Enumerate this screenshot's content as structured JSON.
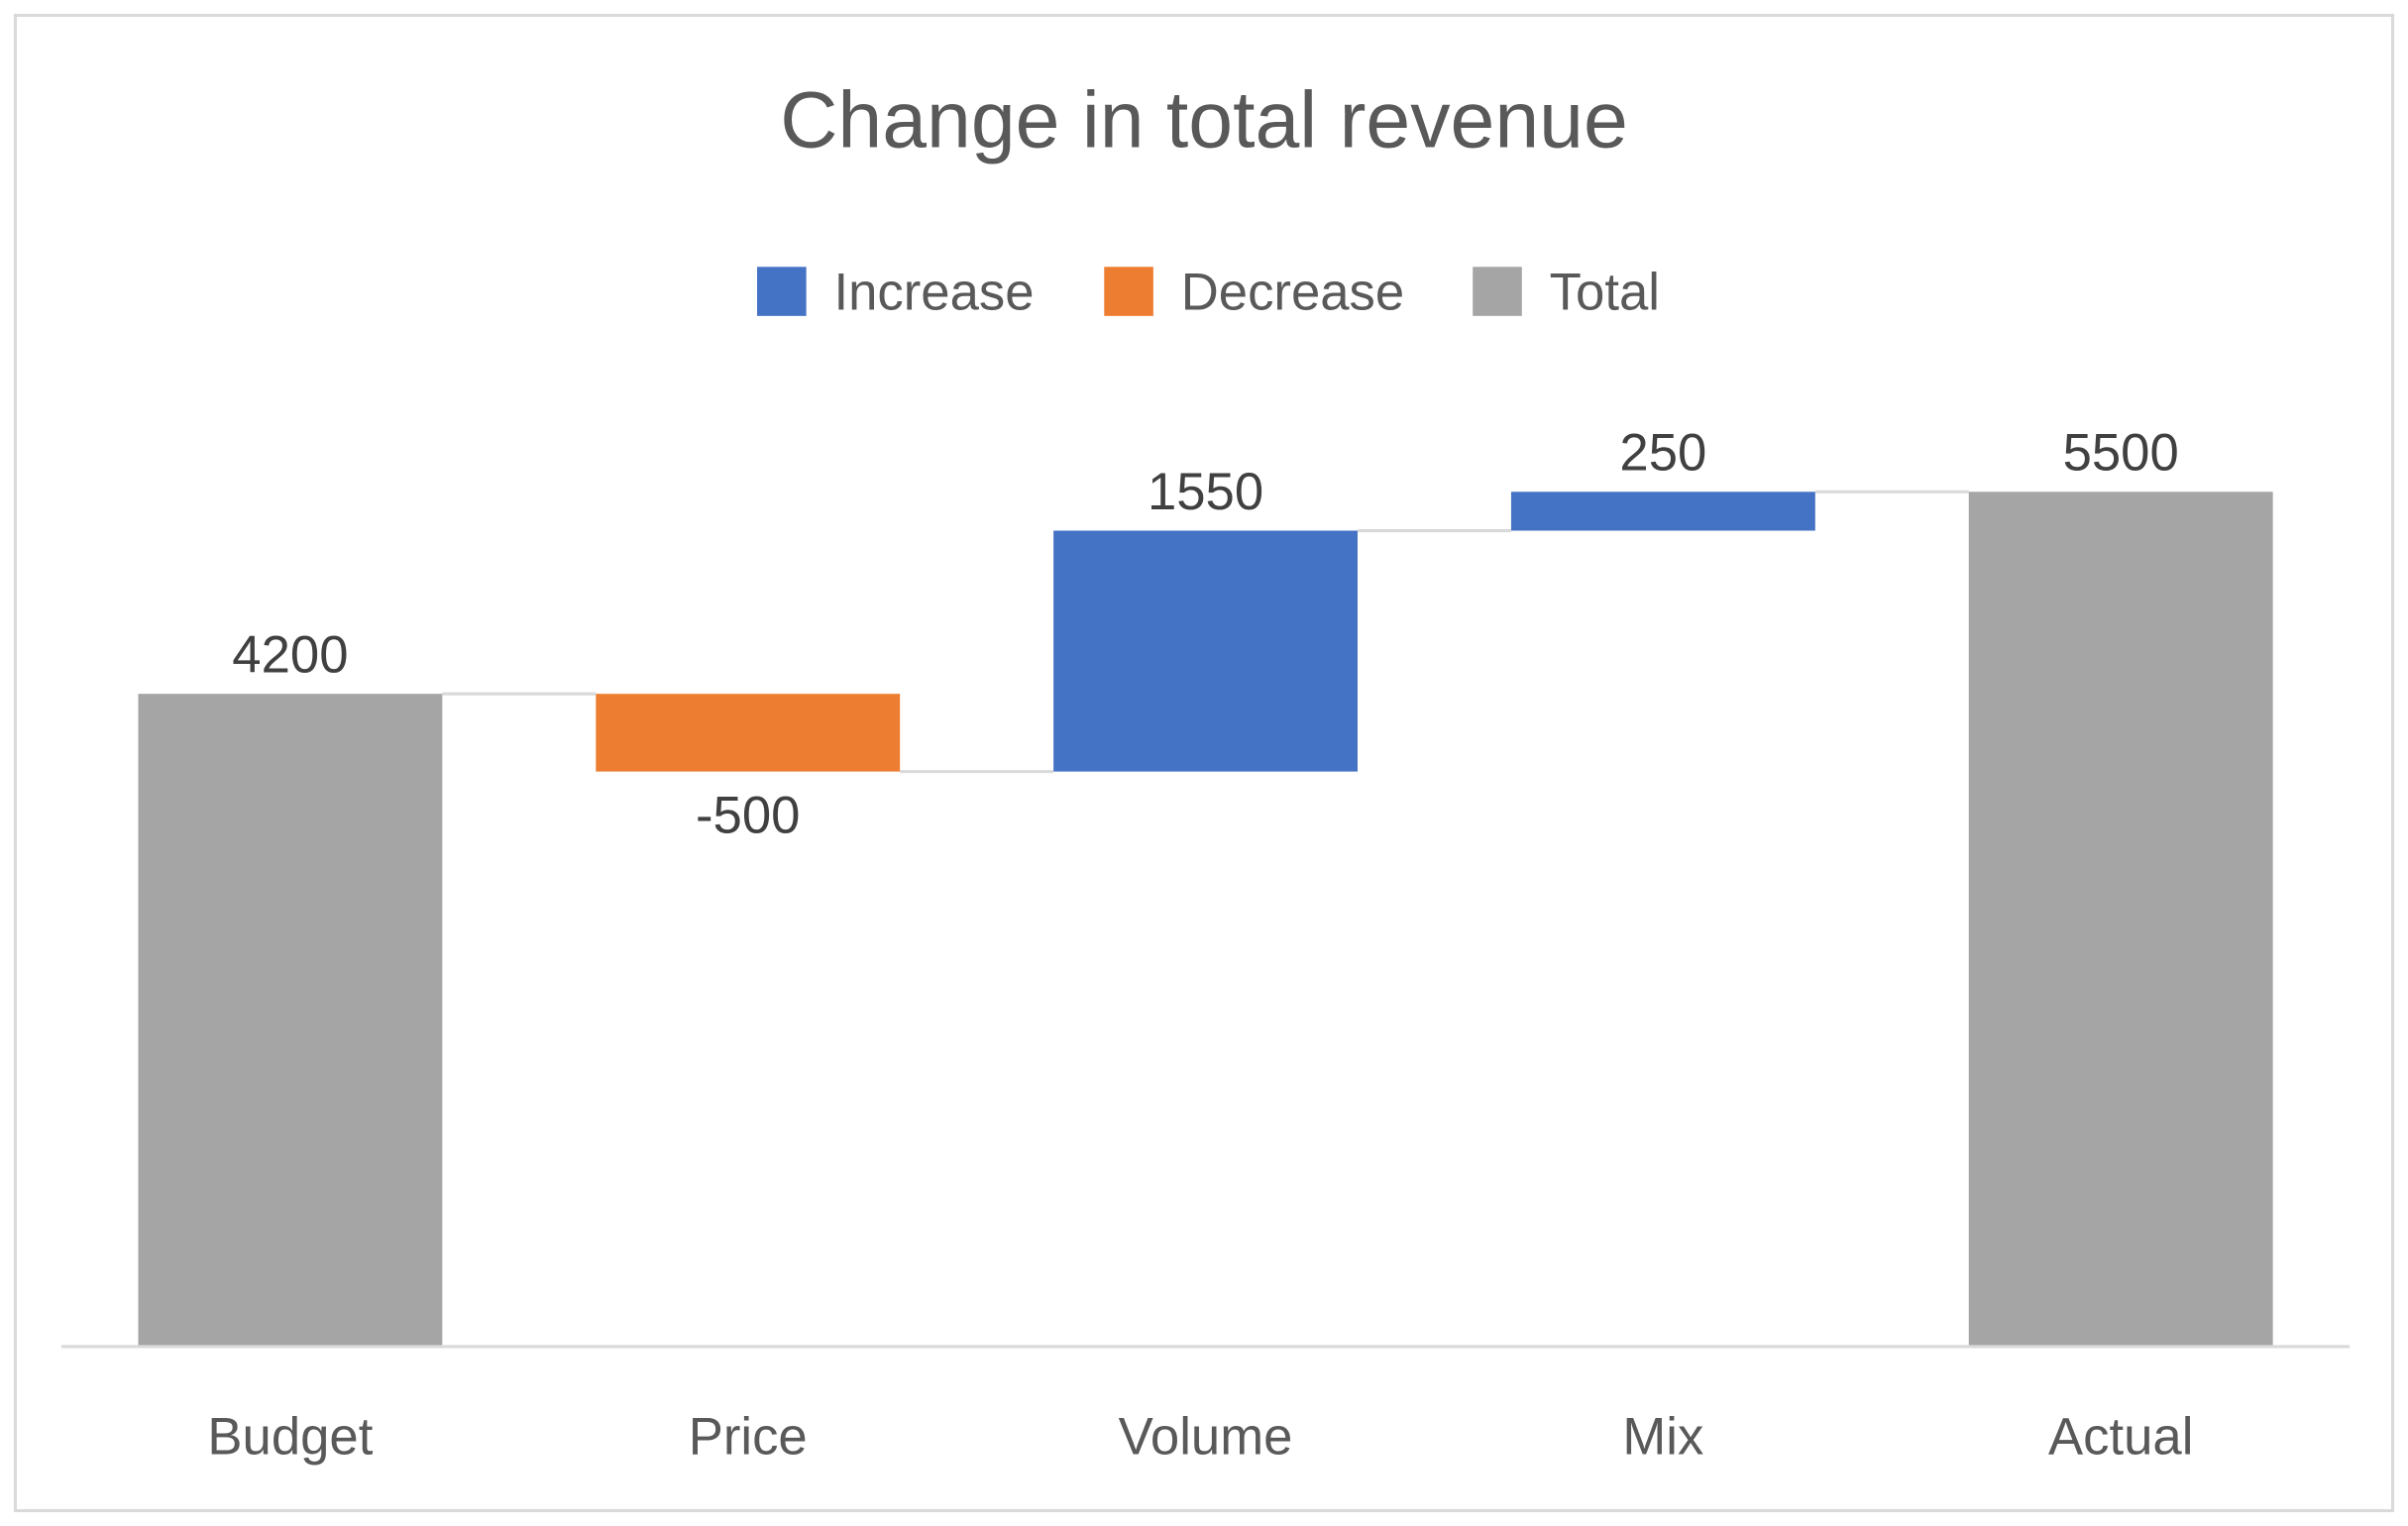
{
  "chart_data": {
    "type": "waterfall",
    "title": "Change in total revenue",
    "categories": [
      "Budget",
      "Price",
      "Volume",
      "Mix",
      "Actual"
    ],
    "values": [
      4200,
      -500,
      1550,
      250,
      5500
    ],
    "kinds": [
      "total",
      "decrease",
      "increase",
      "increase",
      "total"
    ],
    "data_labels": [
      "4200",
      "-500",
      "1550",
      "250",
      "5500"
    ],
    "legend": [
      {
        "key": "increase",
        "label": "Increase",
        "color": "#4472C4"
      },
      {
        "key": "decrease",
        "label": "Decrease",
        "color": "#ED7D31"
      },
      {
        "key": "total",
        "label": "Total",
        "color": "#A5A5A5"
      }
    ],
    "legend_position": "top",
    "ylim": [
      0,
      6000
    ],
    "y_axis_visible": false,
    "grid": false,
    "xlabel": "",
    "ylabel": ""
  }
}
